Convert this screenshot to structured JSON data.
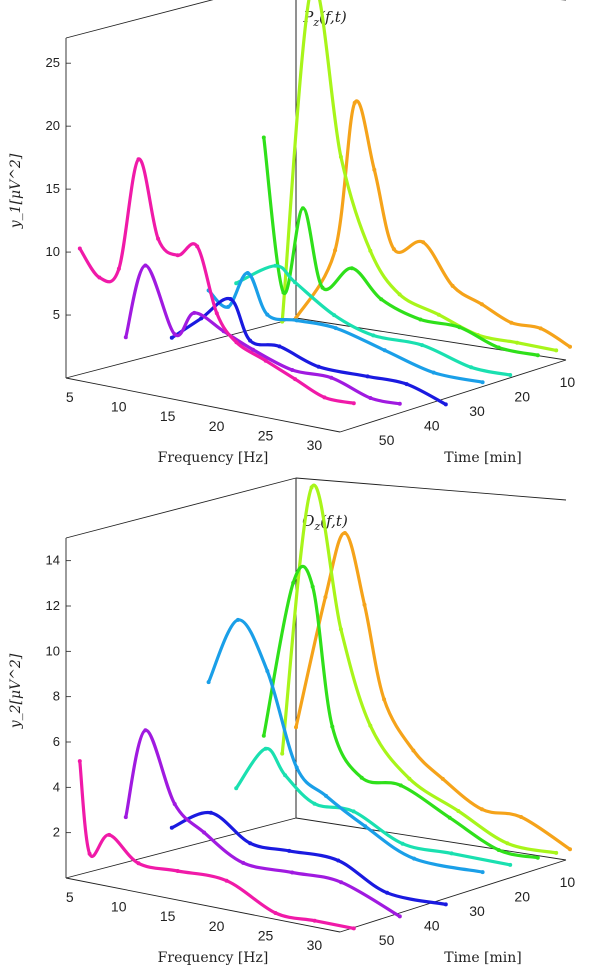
{
  "chart_data": [
    {
      "type": "line",
      "view": "3d-waterfall",
      "title": "P_z(f,t)",
      "xlabel": "Frequency [Hz]",
      "ylabel": "Time [min]",
      "zlabel": "y_1[μV^2]",
      "xlim": [
        4,
        32
      ],
      "ylim": [
        5,
        55
      ],
      "zlim": [
        0,
        27
      ],
      "xticks": [
        5,
        10,
        15,
        20,
        25,
        30
      ],
      "yticks": [
        10,
        20,
        30,
        40,
        50
      ],
      "zticks": [
        5,
        10,
        15,
        20,
        25
      ],
      "grid": false,
      "series": [
        {
          "time": 5,
          "color": "#f5a31a",
          "values": [
            {
              "f": 4,
              "v": 0
            },
            {
              "f": 8,
              "v": 6
            },
            {
              "f": 10,
              "v": 18
            },
            {
              "f": 12,
              "v": 13
            },
            {
              "f": 14,
              "v": 7
            },
            {
              "f": 17,
              "v": 8
            },
            {
              "f": 20,
              "v": 5
            },
            {
              "f": 23,
              "v": 4
            },
            {
              "f": 26,
              "v": 3
            },
            {
              "f": 29,
              "v": 3
            },
            {
              "f": 32,
              "v": 2
            }
          ]
        },
        {
          "time": 8,
          "color": "#a8f51a",
          "values": [
            {
              "f": 4,
              "v": 0
            },
            {
              "f": 7,
              "v": 27
            },
            {
              "f": 10,
              "v": 14
            },
            {
              "f": 13,
              "v": 7
            },
            {
              "f": 16,
              "v": 4
            },
            {
              "f": 20,
              "v": 3
            },
            {
              "f": 24,
              "v": 2
            },
            {
              "f": 28,
              "v": 2
            },
            {
              "f": 32,
              "v": 2
            }
          ]
        },
        {
          "time": 12,
          "color": "#2fe01a",
          "values": [
            {
              "f": 4,
              "v": 15
            },
            {
              "f": 6,
              "v": 3
            },
            {
              "f": 8,
              "v": 10
            },
            {
              "f": 10,
              "v": 4
            },
            {
              "f": 13,
              "v": 6
            },
            {
              "f": 16,
              "v": 4
            },
            {
              "f": 20,
              "v": 3
            },
            {
              "f": 24,
              "v": 3
            },
            {
              "f": 28,
              "v": 2
            },
            {
              "f": 32,
              "v": 2
            }
          ]
        },
        {
          "time": 18,
          "color": "#1ae0b0",
          "values": [
            {
              "f": 4,
              "v": 4
            },
            {
              "f": 8,
              "v": 6
            },
            {
              "f": 10,
              "v": 5
            },
            {
              "f": 14,
              "v": 3
            },
            {
              "f": 18,
              "v": 2
            },
            {
              "f": 23,
              "v": 2
            },
            {
              "f": 28,
              "v": 1
            },
            {
              "f": 32,
              "v": 1
            }
          ]
        },
        {
          "time": 24,
          "color": "#1a9fe8",
          "values": [
            {
              "f": 4,
              "v": 4
            },
            {
              "f": 6,
              "v": 3
            },
            {
              "f": 8,
              "v": 6
            },
            {
              "f": 10,
              "v": 3
            },
            {
              "f": 13,
              "v": 3
            },
            {
              "f": 17,
              "v": 3
            },
            {
              "f": 22,
              "v": 2
            },
            {
              "f": 27,
              "v": 1
            },
            {
              "f": 32,
              "v": 1
            }
          ]
        },
        {
          "time": 32,
          "color": "#1a1ae0",
          "values": [
            {
              "f": 4,
              "v": 1
            },
            {
              "f": 7,
              "v": 3
            },
            {
              "f": 10,
              "v": 5
            },
            {
              "f": 12,
              "v": 2
            },
            {
              "f": 15,
              "v": 2
            },
            {
              "f": 19,
              "v": 1
            },
            {
              "f": 24,
              "v": 1
            },
            {
              "f": 28,
              "v": 1
            },
            {
              "f": 32,
              "v": 0
            }
          ]
        },
        {
          "time": 42,
          "color": "#a01ae0",
          "values": [
            {
              "f": 4,
              "v": 2
            },
            {
              "f": 6,
              "v": 8
            },
            {
              "f": 9,
              "v": 3
            },
            {
              "f": 11,
              "v": 5
            },
            {
              "f": 14,
              "v": 4
            },
            {
              "f": 17,
              "v": 3
            },
            {
              "f": 21,
              "v": 2
            },
            {
              "f": 25,
              "v": 2
            },
            {
              "f": 29,
              "v": 1
            },
            {
              "f": 32,
              "v": 1
            }
          ]
        },
        {
          "time": 52,
          "color": "#f01aa8",
          "values": [
            {
              "f": 4,
              "v": 10
            },
            {
              "f": 6,
              "v": 8
            },
            {
              "f": 8,
              "v": 9
            },
            {
              "f": 10,
              "v": 18
            },
            {
              "f": 12,
              "v": 12
            },
            {
              "f": 14,
              "v": 11
            },
            {
              "f": 16,
              "v": 12
            },
            {
              "f": 18,
              "v": 7
            },
            {
              "f": 20,
              "v": 5
            },
            {
              "f": 23,
              "v": 4
            },
            {
              "f": 26,
              "v": 3
            },
            {
              "f": 29,
              "v": 2
            },
            {
              "f": 32,
              "v": 2
            }
          ]
        }
      ]
    },
    {
      "type": "line",
      "view": "3d-waterfall",
      "title": "O_z(f,t)",
      "xlabel": "Frequency [Hz]",
      "ylabel": "Time [min]",
      "zlabel": "y_2[μV^2]",
      "xlim": [
        4,
        32
      ],
      "ylim": [
        5,
        55
      ],
      "zlim": [
        0,
        15
      ],
      "xticks": [
        5,
        10,
        15,
        20,
        25,
        30
      ],
      "yticks": [
        10,
        20,
        30,
        40,
        50
      ],
      "zticks": [
        2,
        4,
        6,
        8,
        10,
        12,
        14
      ],
      "grid": false,
      "series": [
        {
          "time": 5,
          "color": "#f5a31a",
          "values": [
            {
              "f": 4,
              "v": 4
            },
            {
              "f": 7,
              "v": 10
            },
            {
              "f": 9,
              "v": 13
            },
            {
              "f": 11,
              "v": 10
            },
            {
              "f": 13,
              "v": 6
            },
            {
              "f": 16,
              "v": 4
            },
            {
              "f": 19,
              "v": 3
            },
            {
              "f": 23,
              "v": 2
            },
            {
              "f": 27,
              "v": 2
            },
            {
              "f": 32,
              "v": 1
            }
          ]
        },
        {
          "time": 8,
          "color": "#a8f51a",
          "values": [
            {
              "f": 4,
              "v": 3
            },
            {
              "f": 7,
              "v": 15
            },
            {
              "f": 10,
              "v": 9
            },
            {
              "f": 13,
              "v": 5
            },
            {
              "f": 17,
              "v": 3
            },
            {
              "f": 22,
              "v": 2
            },
            {
              "f": 27,
              "v": 1
            },
            {
              "f": 32,
              "v": 1
            }
          ]
        },
        {
          "time": 12,
          "color": "#2fe01a",
          "values": [
            {
              "f": 4,
              "v": 4
            },
            {
              "f": 7,
              "v": 11
            },
            {
              "f": 9,
              "v": 11
            },
            {
              "f": 11,
              "v": 5
            },
            {
              "f": 14,
              "v": 3
            },
            {
              "f": 18,
              "v": 3
            },
            {
              "f": 23,
              "v": 2
            },
            {
              "f": 28,
              "v": 1
            },
            {
              "f": 32,
              "v": 1
            }
          ]
        },
        {
          "time": 18,
          "color": "#1ae0b0",
          "values": [
            {
              "f": 4,
              "v": 2
            },
            {
              "f": 7,
              "v": 4
            },
            {
              "f": 9,
              "v": 3
            },
            {
              "f": 12,
              "v": 2
            },
            {
              "f": 16,
              "v": 2
            },
            {
              "f": 21,
              "v": 1
            },
            {
              "f": 26,
              "v": 1
            },
            {
              "f": 32,
              "v": 1
            }
          ]
        },
        {
          "time": 24,
          "color": "#1a9fe8",
          "values": [
            {
              "f": 4,
              "v": 7
            },
            {
              "f": 7,
              "v": 10
            },
            {
              "f": 10,
              "v": 8
            },
            {
              "f": 13,
              "v": 4
            },
            {
              "f": 16,
              "v": 3
            },
            {
              "f": 20,
              "v": 2
            },
            {
              "f": 25,
              "v": 1
            },
            {
              "f": 32,
              "v": 1
            }
          ]
        },
        {
          "time": 32,
          "color": "#1a1ae0",
          "values": [
            {
              "f": 4,
              "v": 1
            },
            {
              "f": 8,
              "v": 2
            },
            {
              "f": 12,
              "v": 1
            },
            {
              "f": 16,
              "v": 1
            },
            {
              "f": 21,
              "v": 1
            },
            {
              "f": 26,
              "v": 0
            },
            {
              "f": 32,
              "v": 0
            }
          ]
        },
        {
          "time": 42,
          "color": "#a01ae0",
          "values": [
            {
              "f": 4,
              "v": 2
            },
            {
              "f": 6,
              "v": 6
            },
            {
              "f": 9,
              "v": 3
            },
            {
              "f": 12,
              "v": 2
            },
            {
              "f": 16,
              "v": 1
            },
            {
              "f": 21,
              "v": 1
            },
            {
              "f": 26,
              "v": 1
            },
            {
              "f": 32,
              "v": 0
            }
          ]
        },
        {
          "time": 52,
          "color": "#f01aa8",
          "values": [
            {
              "f": 4,
              "v": 5
            },
            {
              "f": 5,
              "v": 1
            },
            {
              "f": 7,
              "v": 2
            },
            {
              "f": 10,
              "v": 1
            },
            {
              "f": 14,
              "v": 1
            },
            {
              "f": 19,
              "v": 1
            },
            {
              "f": 24,
              "v": 0
            },
            {
              "f": 28,
              "v": 0
            },
            {
              "f": 32,
              "v": 0
            }
          ]
        }
      ]
    }
  ]
}
